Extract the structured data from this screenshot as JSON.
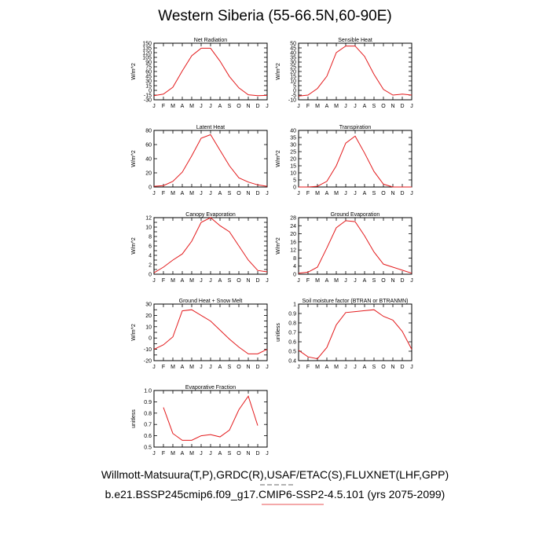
{
  "figure": {
    "title": "Western Siberia (55-66.5N,60-90E)",
    "footer_line1": "Willmott-Matsuura(T,P),GRDC(R),USAF/ETAC(S),FLUXNET(LHF,GPP)",
    "footer_line2": "b.e21.BSSP245cmip6.f09_g17.CMIP6-SSP2-4.5.101 (yrs 2075-2099)",
    "line_color": "#e31a1c",
    "footer_accent_color": "#e31a1c"
  },
  "chart_data": [
    {
      "type": "line",
      "title": "Net Radiation",
      "ylabel": "W/m^2",
      "categories": [
        "J",
        "F",
        "M",
        "A",
        "M",
        "J",
        "J",
        "A",
        "S",
        "O",
        "N",
        "D",
        "J"
      ],
      "ylim": [
        -30,
        150
      ],
      "yticks": [
        -30,
        -15,
        0,
        15,
        30,
        45,
        60,
        75,
        90,
        105,
        120,
        135,
        150
      ],
      "series": [
        {
          "values": [
            -17,
            -12,
            10,
            62,
            110,
            134,
            134,
            93,
            44,
            8,
            -14,
            -17,
            -16
          ]
        }
      ]
    },
    {
      "type": "line",
      "title": "Sensible Heat",
      "ylabel": "W/m^2",
      "categories": [
        "J",
        "F",
        "M",
        "A",
        "M",
        "J",
        "J",
        "A",
        "S",
        "O",
        "N",
        "D",
        "J"
      ],
      "ylim": [
        -10,
        50
      ],
      "yticks": [
        -10,
        -5,
        0,
        5,
        10,
        15,
        20,
        25,
        30,
        35,
        40,
        45,
        50
      ],
      "series": [
        {
          "values": [
            -6,
            -5,
            2,
            15,
            40,
            47,
            47,
            36,
            17,
            1,
            -5,
            -4,
            -5
          ]
        }
      ]
    },
    {
      "type": "line",
      "title": "Latent Heat",
      "ylabel": "W/m^2",
      "categories": [
        "J",
        "F",
        "M",
        "A",
        "M",
        "J",
        "J",
        "A",
        "S",
        "O",
        "N",
        "D",
        "J"
      ],
      "ylim": [
        0,
        80
      ],
      "yticks": [
        0,
        20,
        40,
        60,
        80
      ],
      "series": [
        {
          "values": [
            1,
            2,
            8,
            21,
            44,
            69,
            74,
            52,
            30,
            13,
            7,
            3,
            1
          ]
        }
      ]
    },
    {
      "type": "line",
      "title": "Transpiration",
      "ylabel": "W/m^2",
      "categories": [
        "J",
        "F",
        "M",
        "A",
        "M",
        "J",
        "J",
        "A",
        "S",
        "O",
        "N",
        "D",
        "J"
      ],
      "ylim": [
        0,
        40
      ],
      "yticks": [
        0,
        5,
        10,
        15,
        20,
        25,
        30,
        35,
        40
      ],
      "series": [
        {
          "values": [
            0,
            0,
            0.5,
            4,
            15,
            31,
            36,
            24,
            11,
            2,
            0,
            0,
            0
          ]
        }
      ]
    },
    {
      "type": "line",
      "title": "Canopy Evaporation",
      "ylabel": "W/m^2",
      "categories": [
        "J",
        "F",
        "M",
        "A",
        "M",
        "J",
        "J",
        "A",
        "S",
        "O",
        "N",
        "D",
        "J"
      ],
      "ylim": [
        0,
        12
      ],
      "yticks": [
        0,
        1,
        2,
        3,
        4,
        5,
        6,
        7,
        8,
        9,
        10,
        11,
        12
      ],
      "ytick_labels": [
        "0",
        "",
        "2",
        "",
        "4",
        "",
        "6",
        "",
        "8",
        "",
        "10",
        "",
        "12"
      ],
      "series": [
        {
          "values": [
            0.3,
            1.5,
            3,
            4.3,
            7,
            11,
            12,
            10.3,
            9,
            6,
            3,
            0.8,
            0.5
          ]
        }
      ]
    },
    {
      "type": "line",
      "title": "Ground Evaporation",
      "ylabel": "W/m^2",
      "categories": [
        "J",
        "F",
        "M",
        "A",
        "M",
        "J",
        "J",
        "A",
        "S",
        "O",
        "N",
        "D",
        "J"
      ],
      "ylim": [
        0,
        28
      ],
      "yticks": [
        0,
        4,
        8,
        12,
        16,
        20,
        24,
        28
      ],
      "series": [
        {
          "values": [
            0.5,
            1,
            3.5,
            13,
            23,
            26.5,
            26,
            19,
            11,
            5,
            3.5,
            2,
            0.5
          ]
        }
      ]
    },
    {
      "type": "line",
      "title": "Ground Heat + Snow Melt",
      "ylabel": "W/m^2",
      "categories": [
        "J",
        "F",
        "M",
        "A",
        "M",
        "J",
        "J",
        "A",
        "S",
        "O",
        "N",
        "D",
        "J"
      ],
      "ylim": [
        -20,
        30
      ],
      "yticks": [
        -20,
        -15,
        -10,
        -5,
        0,
        5,
        10,
        15,
        20,
        25,
        30
      ],
      "ytick_labels": [
        "-20",
        "",
        "-10",
        "",
        "0",
        "",
        "10",
        "",
        "20",
        "",
        "30"
      ],
      "series": [
        {
          "values": [
            -10,
            -6,
            1,
            24,
            25,
            20,
            15,
            7,
            -1,
            -8,
            -14,
            -14,
            -10
          ]
        }
      ]
    },
    {
      "type": "line",
      "title": "Soil moisture factor (BTRAN or BTRANMN)",
      "ylabel": "unitless",
      "categories": [
        "J",
        "F",
        "M",
        "A",
        "M",
        "J",
        "J",
        "A",
        "S",
        "O",
        "N",
        "D",
        "J"
      ],
      "ylim": [
        0.4,
        1.0
      ],
      "yticks": [
        0.4,
        0.5,
        0.6,
        0.7,
        0.8,
        0.9,
        1.0
      ],
      "ytick_labels": [
        "0.4",
        "0.5",
        "0.6",
        "0.7",
        "0.8",
        "0.9",
        "1"
      ],
      "series": [
        {
          "values": [
            0.51,
            0.44,
            0.42,
            0.54,
            0.78,
            0.91,
            0.92,
            0.93,
            0.94,
            0.87,
            0.83,
            0.71,
            0.52
          ]
        }
      ]
    },
    {
      "type": "line",
      "title": "Evaporative Fraction",
      "ylabel": "unitless",
      "categories": [
        "J",
        "F",
        "M",
        "A",
        "M",
        "J",
        "J",
        "A",
        "S",
        "O",
        "N",
        "D",
        "J"
      ],
      "ylim": [
        0.5,
        1.0
      ],
      "yticks": [
        0.5,
        0.6,
        0.7,
        0.8,
        0.9,
        1.0
      ],
      "ytick_labels": [
        "0.5",
        "0.6",
        "0.7",
        "0.8",
        "0.9",
        "1.0"
      ],
      "series": [
        {
          "values": [
            null,
            0.85,
            0.62,
            0.56,
            0.56,
            0.6,
            0.61,
            0.59,
            0.65,
            0.83,
            0.95,
            0.69,
            null
          ]
        }
      ]
    }
  ]
}
